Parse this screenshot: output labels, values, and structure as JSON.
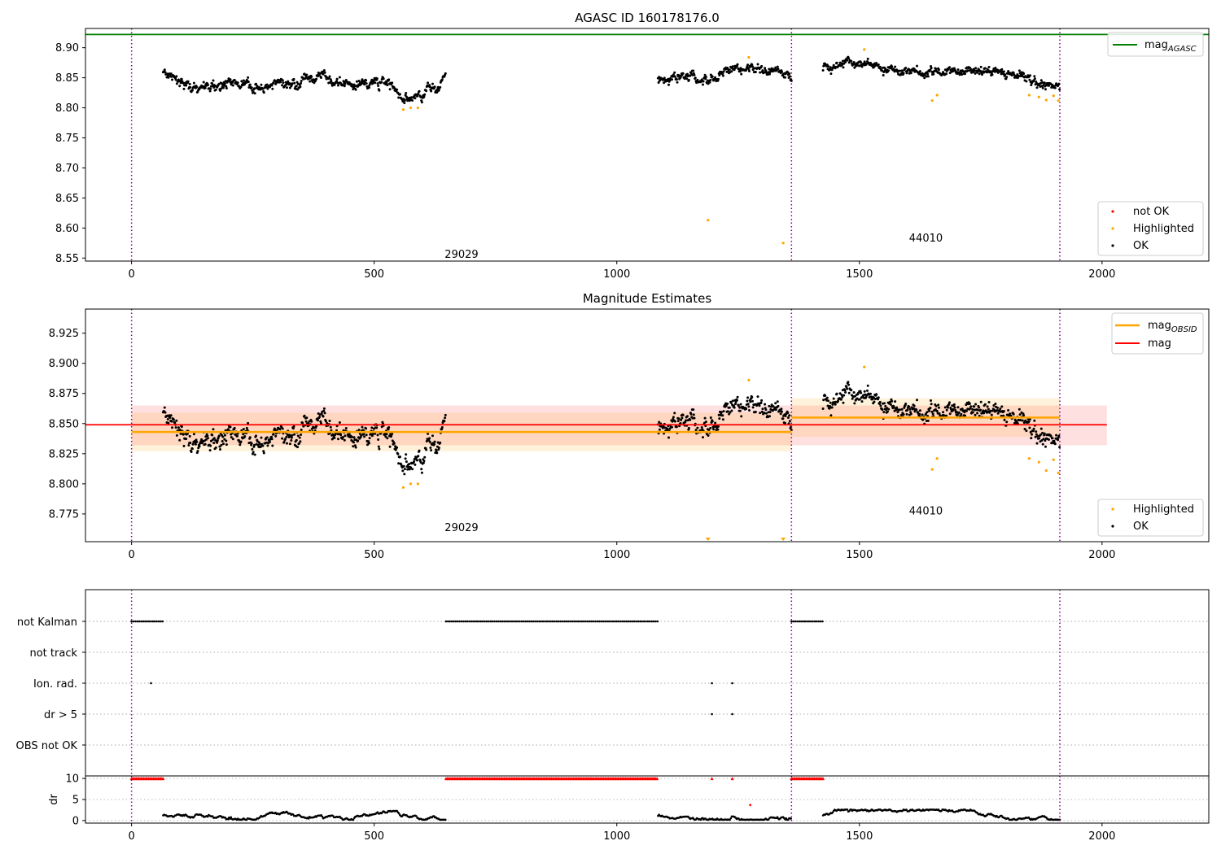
{
  "chart_data": [
    {
      "type": "scatter",
      "title": "AGASC ID 160178176.0",
      "xlim": [
        -95,
        2220
      ],
      "ylim": [
        8.545,
        8.932
      ],
      "x_ticks": [
        0,
        500,
        1000,
        1500,
        2000
      ],
      "y_ticks": [
        8.55,
        8.6,
        8.65,
        8.7,
        8.75,
        8.8,
        8.85,
        8.9
      ],
      "grid": false,
      "obsid_boundaries": [
        0,
        1360,
        1913
      ],
      "obsid_labels": [
        {
          "text": "29029",
          "x": 680,
          "y": 8.557
        },
        {
          "text": "44010",
          "x": 1637,
          "y": 8.584
        }
      ],
      "lines": [
        {
          "name": "mag_AGASC",
          "label_main": "mag",
          "label_sub": "AGASC",
          "y": 8.922,
          "color": "#008000"
        }
      ],
      "segments": [
        {
          "x0": 65,
          "x1": 648,
          "trend": [
            [
              65,
              8.86
            ],
            [
              100,
              8.835
            ],
            [
              200,
              8.842
            ],
            [
              300,
              8.83
            ],
            [
              360,
              8.853
            ],
            [
              450,
              8.84
            ],
            [
              520,
              8.845
            ],
            [
              560,
              8.812
            ],
            [
              600,
              8.815
            ],
            [
              648,
              8.852
            ]
          ],
          "noise": 0.01
        },
        {
          "x0": 1085,
          "x1": 1360,
          "trend": [
            [
              1085,
              8.848
            ],
            [
              1200,
              8.852
            ],
            [
              1270,
              8.868
            ],
            [
              1360,
              8.852
            ]
          ],
          "noise": 0.01
        },
        {
          "x0": 1425,
          "x1": 1913,
          "trend": [
            [
              1425,
              8.868
            ],
            [
              1510,
              8.878
            ],
            [
              1600,
              8.855
            ],
            [
              1700,
              8.866
            ],
            [
              1850,
              8.852
            ],
            [
              1913,
              8.82
            ]
          ],
          "noise": 0.009
        }
      ],
      "highlighted": [
        [
          560,
          8.797
        ],
        [
          575,
          8.8
        ],
        [
          590,
          8.8
        ],
        [
          1188,
          8.613
        ],
        [
          1272,
          8.884
        ],
        [
          1343,
          8.575
        ],
        [
          1510,
          8.897
        ],
        [
          1650,
          8.812
        ],
        [
          1660,
          8.821
        ],
        [
          1850,
          8.821
        ],
        [
          1870,
          8.818
        ],
        [
          1885,
          8.813
        ],
        [
          1900,
          8.82
        ],
        [
          1910,
          8.812
        ]
      ],
      "legend": {
        "position": "lower right",
        "entries": [
          {
            "label": "not OK",
            "color": "#ff0000"
          },
          {
            "label": "Highlighted",
            "color": "#ffa500"
          },
          {
            "label": "OK",
            "color": "#000000"
          }
        ]
      }
    },
    {
      "type": "scatter",
      "title": "Magnitude Estimates",
      "xlim": [
        -95,
        2220
      ],
      "ylim": [
        8.752,
        8.945
      ],
      "x_ticks": [
        0,
        500,
        1000,
        1500,
        2000
      ],
      "y_ticks": [
        8.775,
        8.8,
        8.825,
        8.85,
        8.875,
        8.9,
        8.925
      ],
      "grid": false,
      "obsid_boundaries": [
        0,
        1360,
        1913
      ],
      "obsid_labels": [
        {
          "text": "29029",
          "x": 680,
          "y": 8.764
        },
        {
          "text": "44010",
          "x": 1637,
          "y": 8.778
        }
      ],
      "mag": {
        "value": 8.849,
        "band_lo": 8.832,
        "band_hi": 8.865,
        "x0": 0,
        "x1": 2010,
        "color": "#ff0000"
      },
      "mag_obsid": [
        {
          "x0": 0,
          "x1": 1360,
          "value": 8.843,
          "band_lo": 8.827,
          "band_hi": 8.859
        },
        {
          "x0": 1360,
          "x1": 1913,
          "value": 8.855,
          "band_lo": 8.839,
          "band_hi": 8.871
        }
      ],
      "highlighted": [
        [
          560,
          8.797
        ],
        [
          575,
          8.8
        ],
        [
          590,
          8.8
        ],
        [
          1272,
          8.886
        ],
        [
          1510,
          8.897
        ],
        [
          1650,
          8.812
        ],
        [
          1660,
          8.821
        ],
        [
          1850,
          8.821
        ],
        [
          1870,
          8.818
        ],
        [
          1885,
          8.811
        ],
        [
          1900,
          8.82
        ],
        [
          1910,
          8.809
        ]
      ],
      "offscale_low": [
        1188,
        1343
      ],
      "legend_upper": {
        "position": "upper right",
        "entries": [
          {
            "label_main": "mag",
            "label_sub": "OBSID",
            "color": "#ffa500"
          },
          {
            "label_main": "mag",
            "label_sub": "",
            "color": "#ff0000"
          }
        ]
      },
      "legend_lower": {
        "position": "lower right",
        "entries": [
          {
            "label": "Highlighted",
            "color": "#ffa500"
          },
          {
            "label": "OK",
            "color": "#000000"
          }
        ]
      }
    },
    {
      "type": "scatter",
      "title": "",
      "xlim": [
        -95,
        2220
      ],
      "categories": [
        "not Kalman",
        "not track",
        "Ion. rad.",
        "dr > 5",
        "OBS not OK"
      ],
      "flag_ranges": {
        "not Kalman": [
          [
            0,
            65
          ],
          [
            648,
            1085
          ],
          [
            1360,
            1425
          ]
        ],
        "not track": [],
        "Ion. rad.": [
          [
            40,
            40
          ],
          [
            1196,
            1196
          ],
          [
            1238,
            1238
          ]
        ],
        "dr > 5": [
          [
            1196,
            1196
          ],
          [
            1238,
            1238
          ]
        ],
        "OBS not OK": []
      },
      "obsid_boundaries": [
        0,
        1360,
        1913
      ]
    },
    {
      "type": "scatter",
      "ylabel": "dr",
      "xlim": [
        -95,
        2220
      ],
      "ylim": [
        -0.6,
        10.6
      ],
      "x_ticks": [
        0,
        500,
        1000,
        1500,
        2000
      ],
      "y_ticks": [
        0,
        5,
        10
      ],
      "clipped_at": 10,
      "clipped_ranges": [
        [
          0,
          65
        ],
        [
          648,
          1085
        ],
        [
          1360,
          1425
        ],
        [
          1196,
          1196
        ],
        [
          1238,
          1238
        ]
      ],
      "outlier": [
        [
          1275,
          3.7
        ]
      ],
      "segments": [
        [
          65,
          648
        ],
        [
          1085,
          1360
        ],
        [
          1425,
          1913
        ]
      ],
      "obsid_boundaries": [
        0,
        1360,
        1913
      ]
    }
  ]
}
